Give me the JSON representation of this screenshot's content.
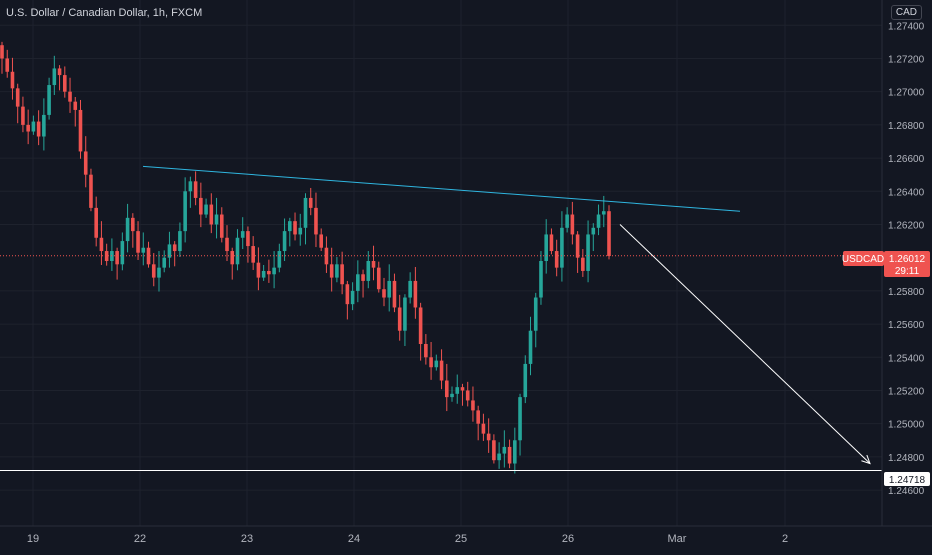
{
  "chart_title": "U.S. Dollar / Canadian Dollar, 1h, FXCM",
  "currency": "CAD",
  "colors": {
    "background": "#131722",
    "grid": "#1e222d",
    "up": "#26a69a",
    "down": "#ef5350",
    "trendline": "#2fb6e0",
    "arrow": "#ffffff",
    "support": "#ffffff"
  },
  "chart_data": {
    "type": "candlestick",
    "title": "U.S. Dollar / Canadian Dollar, 1h, FXCM",
    "ylim": [
      1.2448,
      1.2748
    ],
    "y_ticks": [
      "1.27400",
      "1.27200",
      "1.27000",
      "1.26800",
      "1.26600",
      "1.26400",
      "1.26200",
      "1.25800",
      "1.25600",
      "1.25400",
      "1.25200",
      "1.25000",
      "1.24800",
      "1.24600"
    ],
    "x_ticks": [
      "19",
      "22",
      "23",
      "24",
      "25",
      "26",
      "Mar",
      "2"
    ],
    "symbol": "USDCAD",
    "last_price": "1.26012",
    "countdown": "29:11",
    "support_level": "1.24718",
    "trendline": {
      "start": [
        "22",
        1.2655
      ],
      "end": [
        "2",
        1.2628
      ]
    },
    "arrow": {
      "start": [
        "26",
        1.262
      ],
      "end": [
        "2",
        1.2476
      ]
    },
    "closes": [
      1.272,
      1.2712,
      1.2702,
      1.2691,
      1.268,
      1.2676,
      1.2682,
      1.2673,
      1.2686,
      1.2704,
      1.2714,
      1.271,
      1.27,
      1.2694,
      1.2689,
      1.2664,
      1.265,
      1.263,
      1.2612,
      1.2604,
      1.2598,
      1.2604,
      1.2596,
      1.261,
      1.2624,
      1.2616,
      1.2603,
      1.2606,
      1.2596,
      1.2588,
      1.2594,
      1.26,
      1.2608,
      1.2604,
      1.2616,
      1.264,
      1.2646,
      1.2636,
      1.2626,
      1.2632,
      1.262,
      1.2626,
      1.2612,
      1.2604,
      1.2596,
      1.2612,
      1.2616,
      1.2607,
      1.2597,
      1.2588,
      1.2592,
      1.259,
      1.2594,
      1.2604,
      1.2616,
      1.2622,
      1.2614,
      1.2618,
      1.2636,
      1.263,
      1.2614,
      1.2606,
      1.2596,
      1.2588,
      1.2596,
      1.2584,
      1.2572,
      1.258,
      1.259,
      1.2586,
      1.2598,
      1.2594,
      1.2581,
      1.2576,
      1.2586,
      1.257,
      1.2556,
      1.2576,
      1.2586,
      1.257,
      1.2548,
      1.254,
      1.2534,
      1.2538,
      1.2526,
      1.2516,
      1.2518,
      1.2522,
      1.252,
      1.2514,
      1.2508,
      1.25,
      1.2494,
      1.249,
      1.2478,
      1.2482,
      1.2486,
      1.2476,
      1.249,
      1.2516,
      1.2536,
      1.2556,
      1.2576,
      1.2598,
      1.2614,
      1.2604,
      1.2594,
      1.2618,
      1.2626,
      1.2614,
      1.26,
      1.2592,
      1.2614,
      1.2618,
      1.2626,
      1.2628,
      1.2601
    ]
  }
}
